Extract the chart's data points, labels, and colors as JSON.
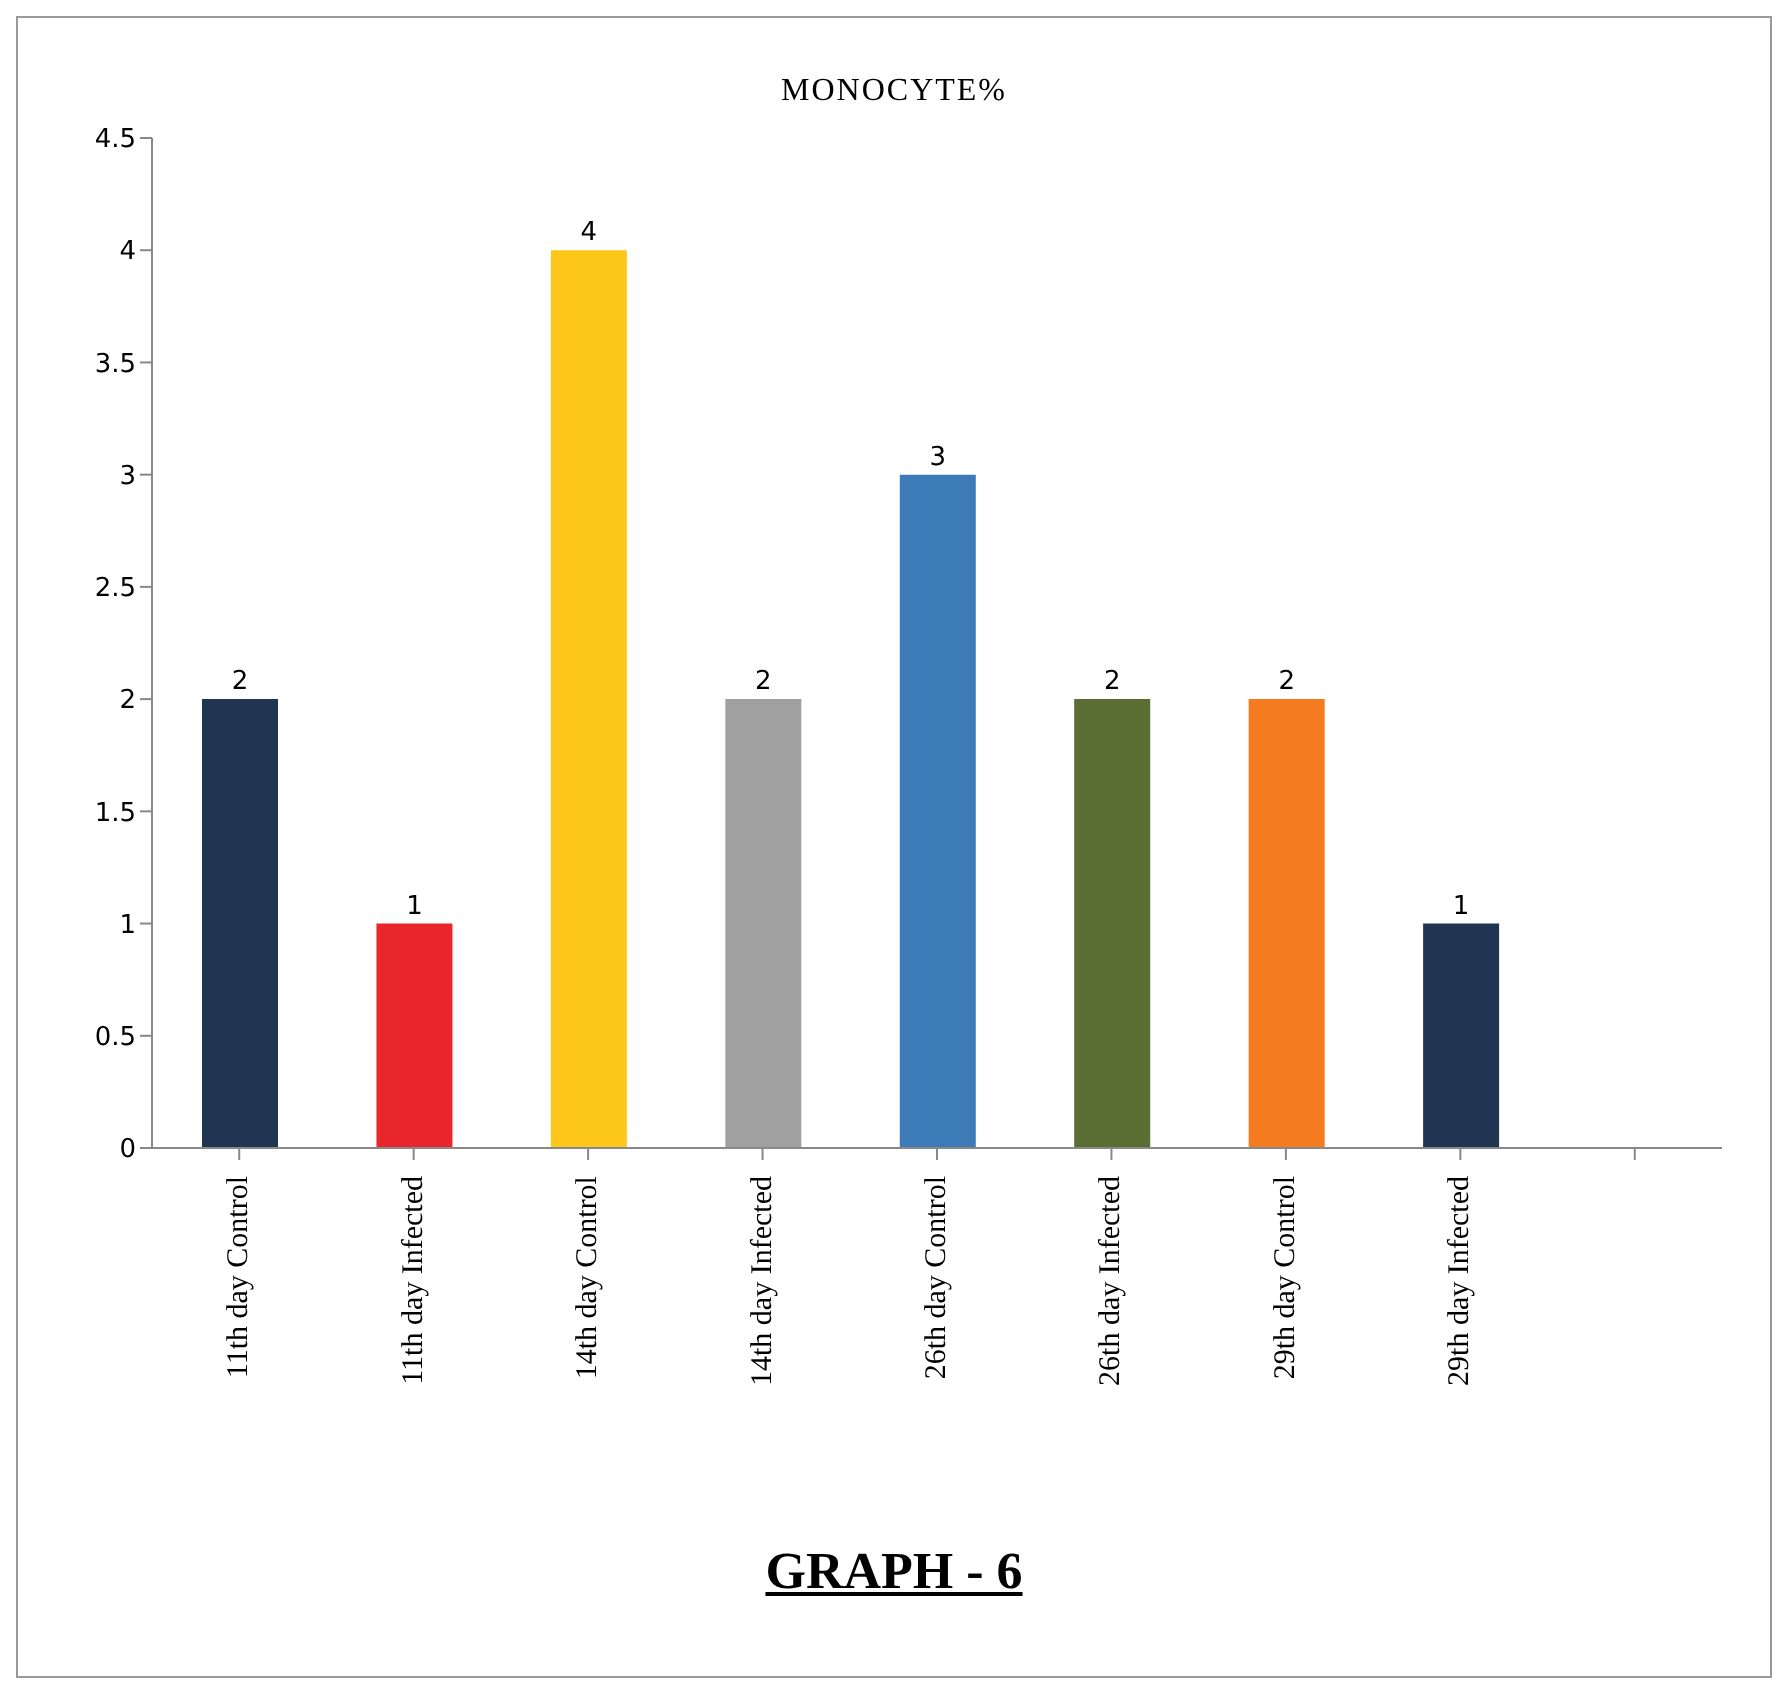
{
  "chart_data": {
    "type": "bar",
    "title": "MONOCYTE%",
    "categories": [
      "11th day Control",
      "11th day Infected",
      "14th day Control",
      "14th day Infected",
      "26th day Control",
      "26th day Infected",
      "29th day Control",
      "29th day Infected",
      null
    ],
    "values": [
      2,
      1,
      4,
      2,
      3,
      2,
      2,
      1,
      null
    ],
    "colors": [
      "#1f3552",
      "#e8262b",
      "#fcc719",
      "#a0a0a0",
      "#3d7ab8",
      "#5a6e34",
      "#f47b20",
      "#1f3552",
      "#1f3552"
    ],
    "ylim": [
      0,
      4.5
    ],
    "yticks": [
      0,
      0.5,
      1,
      1.5,
      2,
      2.5,
      3,
      3.5,
      4,
      4.5
    ],
    "grid": false,
    "data_labels": true,
    "annotations": [
      "GRAPH - 6"
    ]
  }
}
